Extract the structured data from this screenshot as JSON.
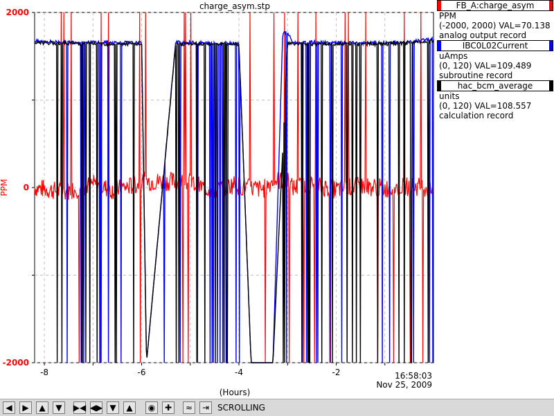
{
  "chart_data": {
    "type": "line",
    "title": "charge_asym.stp",
    "xlabel": "(Hours)",
    "ylabel": "PPM",
    "ylim": [
      -2000,
      2000
    ],
    "y_ticks": [
      "2000",
      "0",
      "-2000"
    ],
    "x_ticks": [
      "-8",
      "-6",
      "-4",
      "-2"
    ],
    "x_end_label": [
      "16:58:03",
      "Nov 25, 2009"
    ],
    "grid": true,
    "colors": {
      "red": "#ff0000",
      "blue": "#0000ff",
      "black": "#000000"
    },
    "series": [
      {
        "name": "FB_A:charge_asym",
        "color": "#ff0000",
        "x": [
          -8.2,
          -7.6,
          -7.0,
          -6.6,
          -6.2,
          -5.95,
          -5.7,
          -5.1,
          -4.5,
          -4.1,
          -3.9,
          -3.5,
          -3.3,
          -3.0,
          -2.9,
          -2.5,
          -2.0,
          -1.5,
          -1.0,
          -0.5,
          0.0
        ],
        "y": [
          0,
          -50,
          40,
          -30,
          20,
          70,
          70,
          70,
          -40,
          40,
          0,
          -20,
          80,
          80,
          0,
          30,
          -20,
          20,
          -10,
          15,
          0
        ]
      },
      {
        "name": "IBC0L02Current",
        "color": "#0000ff",
        "x": [
          -8.2,
          -7.5,
          -6.8,
          -6.0,
          -5.9,
          -5.3,
          -4.7,
          -4.0,
          -3.75,
          -3.3,
          -3.1,
          -3.0,
          -2.9,
          -2.8,
          -2.5,
          -2.0,
          -1.5,
          -1.0,
          -0.5,
          0.0
        ],
        "y": [
          1670,
          1660,
          1660,
          1650,
          -2000,
          1660,
          1650,
          1650,
          -2000,
          -2000,
          1770,
          1770,
          1660,
          1650,
          1660,
          1650,
          1650,
          1650,
          1660,
          1700
        ]
      },
      {
        "name": "hac_bcm_average",
        "color": "#000000",
        "x": [
          -8.2,
          -7.5,
          -6.8,
          -6.0,
          -5.9,
          -5.3,
          -4.7,
          -4.0,
          -3.75,
          -3.3,
          -3.0,
          -2.8,
          -2.5,
          -2.0,
          -1.5,
          -1.0,
          -0.5,
          0.0
        ],
        "y": [
          1650,
          1650,
          1640,
          1640,
          -2000,
          1640,
          1640,
          1640,
          -2000,
          -2000,
          1650,
          1640,
          1640,
          1640,
          1640,
          1640,
          1650,
          1680
        ]
      }
    ]
  },
  "legend": [
    {
      "name": "FB_A:charge_asym",
      "color": "#ff0000",
      "units": "PPM",
      "range": "(-2000, 2000) VAL=70.138",
      "record": "analog output record"
    },
    {
      "name": "IBC0L02Current",
      "color": "#0000ff",
      "units": "uAmps",
      "range": "(0, 120) VAL=109.489",
      "record": "subroutine record"
    },
    {
      "name": "hac_bcm_average",
      "color": "#000000",
      "units": "units",
      "range": "(0, 120) VAL=108.557",
      "record": "calculation record"
    }
  ],
  "toolbar": {
    "status": "SCROLLING",
    "buttons": [
      "arrow-left-icon",
      "arrow-right-icon",
      "arrow-up-icon",
      "arrow-down-icon",
      "zoom-x-in-icon",
      "zoom-x-out-icon",
      "zoom-y-in-icon",
      "zoom-y-out-icon",
      "zoom-box-icon",
      "pan-crosshair-icon",
      "scroll-mode-icon",
      "time-jump-icon"
    ]
  }
}
